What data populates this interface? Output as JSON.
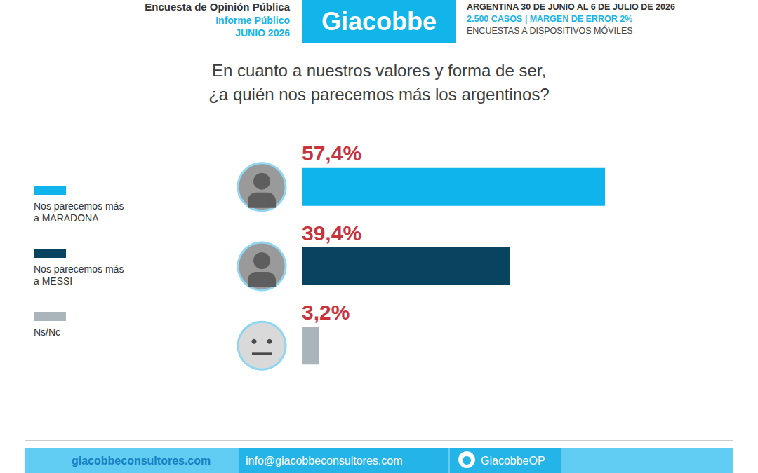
{
  "chart_data": {
    "type": "bar",
    "orientation": "horizontal",
    "title": "En cuanto a nuestros valores y forma de ser,\n¿a quién nos parecemos más los argentinos?",
    "categories": [
      "Nos parecemos más a MARADONA",
      "Nos parecemos más a MESSI",
      "Ns/Nc"
    ],
    "values": [
      57.4,
      39.4,
      3.2
    ],
    "value_labels": [
      "57,4%",
      "39,4%",
      "3,2%"
    ],
    "colors": [
      "#0fb4ec",
      "#08445f",
      "#aab4bb"
    ],
    "data_labels": true,
    "tick_labels": false,
    "grid": false,
    "legend": "left"
  },
  "header": {
    "survey": "Encuesta de Opinión Pública",
    "report": "Informe Público",
    "date": "JUNIO 2026",
    "brand": "Giacobbe",
    "details": [
      "ARGENTINA 30 DE JUNIO AL 6 DE JULIO DE 2026",
      "2.500 CASOS | MARGEN DE ERROR 2%",
      "ENCUESTAS A DISPOSITIVOS MÓVILES"
    ]
  },
  "footer": {
    "website": "giacobbeconsultores.com",
    "email": "info@giacobbeconsultores.com",
    "twitter": "GiacobbeOP"
  }
}
